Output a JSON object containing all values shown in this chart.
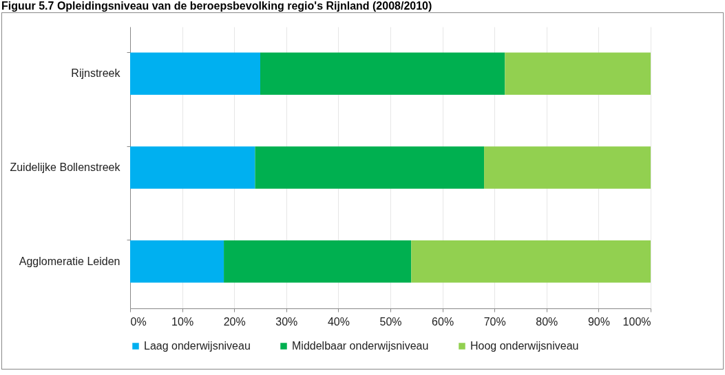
{
  "chart_data": {
    "type": "bar",
    "orientation": "horizontal",
    "stacked": true,
    "title": "Figuur 5.7    Opleidingsniveau van de beroepsbevolking regio's Rijnland (2008/2010)",
    "categories": [
      "Rijnstreek",
      "Zuidelijke Bollenstreek",
      "Agglomeratie Leiden"
    ],
    "series": [
      {
        "name": "Laag onderwijsniveau",
        "color": "#00b0f0",
        "values": [
          25,
          24,
          18
        ]
      },
      {
        "name": "Middelbaar onderwijsniveau",
        "color": "#00b050",
        "values": [
          47,
          44,
          36
        ]
      },
      {
        "name": "Hoog onderwijsniveau",
        "color": "#92d050",
        "values": [
          28,
          32,
          46
        ]
      }
    ],
    "xlim": [
      0,
      100
    ],
    "xticks": [
      {
        "value": 0,
        "label": "0%"
      },
      {
        "value": 10,
        "label": "10%"
      },
      {
        "value": 20,
        "label": "20%"
      },
      {
        "value": 30,
        "label": "30%"
      },
      {
        "value": 40,
        "label": "40%"
      },
      {
        "value": 50,
        "label": "50%"
      },
      {
        "value": 60,
        "label": "60%"
      },
      {
        "value": 70,
        "label": "70%"
      },
      {
        "value": 80,
        "label": "80%"
      },
      {
        "value": 90,
        "label": "90%"
      },
      {
        "value": 100,
        "label": "100%"
      }
    ],
    "grid": "x",
    "legend": "bottom"
  }
}
